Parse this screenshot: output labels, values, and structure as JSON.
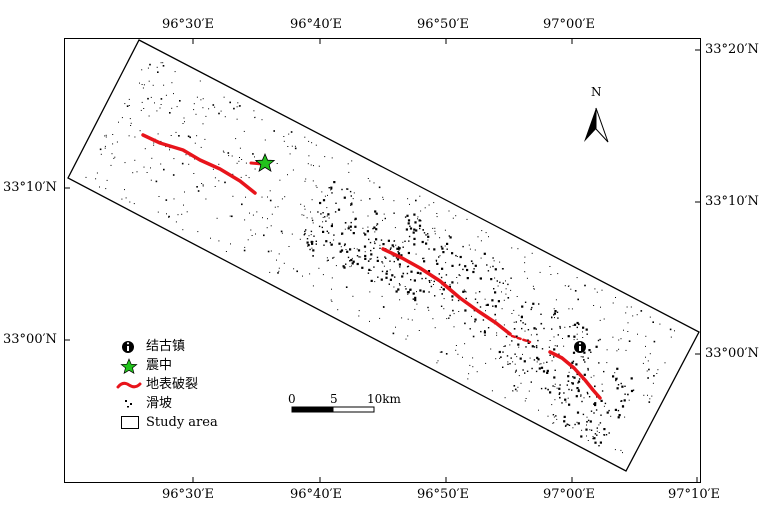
{
  "map": {
    "top_ticks": [
      "96°30′E",
      "96°40′E",
      "96°50′E",
      "97°00′E"
    ],
    "bottom_ticks": [
      "96°30′E",
      "96°40′E",
      "96°50′E",
      "97°00′E",
      "97°10′E"
    ],
    "left_ticks": [
      "33°10′N",
      "33°00′N"
    ],
    "right_ticks": [
      "33°20′N",
      "33°10′N",
      "33°00′N"
    ],
    "north_label": "N",
    "scale": {
      "zero": "0",
      "mid": "5",
      "end": "10km"
    },
    "legend": [
      {
        "key": "town",
        "label": "结古镇"
      },
      {
        "key": "epicenter",
        "label": "震中"
      },
      {
        "key": "rupture",
        "label": "地表破裂"
      },
      {
        "key": "landslide",
        "label": "滑坡"
      },
      {
        "key": "study_area",
        "label": "Study area"
      }
    ],
    "colors": {
      "rupture": "#e8141b",
      "epicenter": "#22c31c",
      "landslide": "#000000",
      "frame": "#000000"
    },
    "icons": {
      "town": "info-circle-icon",
      "epicenter": "star-icon",
      "north": "north-arrow-icon"
    }
  }
}
